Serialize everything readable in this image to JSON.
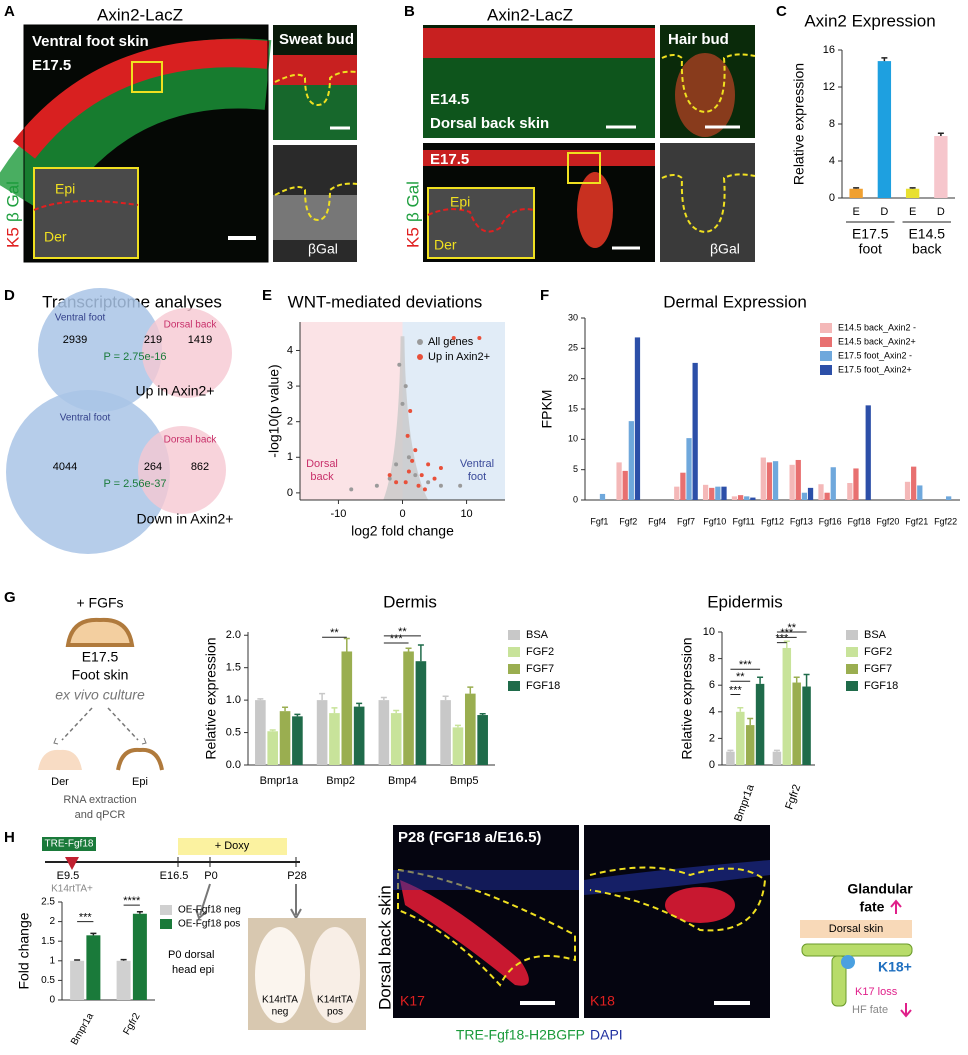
{
  "panel_labels": [
    "A",
    "B",
    "C",
    "D",
    "E",
    "F",
    "G",
    "H"
  ],
  "A": {
    "title": "Axin2-LacZ",
    "stain_k5": "K5",
    "stain_bgal": "β Gal",
    "region": "Ventral foot skin",
    "stage": "E17.5",
    "inset_epi": "Epi",
    "inset_der": "Der",
    "side_top": "Sweat bud",
    "side_bottom": "βGal"
  },
  "B": {
    "title": "Axin2-LacZ",
    "stain_k5": "K5",
    "stain_bgal": "β Gal",
    "stage_top": "E14.5",
    "region": "Dorsal back skin",
    "stage_bottom": "E17.5",
    "inset_epi": "Epi",
    "inset_der": "Der",
    "side_top": "Hair bud",
    "side_bottom": "βGal"
  },
  "D": {
    "title": "Transcriptome analyses",
    "up": {
      "set1": "Ventral foot",
      "set2": "Dorsal back",
      "only1": 2939,
      "both": 219,
      "only2": 1419,
      "p": "P = 2.75e-16",
      "label": "Up in Axin2+"
    },
    "down": {
      "set1": "Ventral foot",
      "set2": "Dorsal back",
      "only1": 4044,
      "both": 264,
      "only2": 862,
      "p": "P = 2.56e-37",
      "label": "Down in Axin2+"
    }
  },
  "G": {
    "schematic": {
      "treatment": "+ FGFs",
      "stage": "E17.5",
      "tissue": "Foot skin",
      "method": "ex vivo culture",
      "der": "Der",
      "epi": "Epi",
      "assay": [
        "RNA extraction",
        "and qPCR"
      ]
    }
  },
  "H": {
    "timeline": {
      "construct": "TRE-Fgf18",
      "points": [
        "E9.5",
        "E16.5",
        "P0",
        "P28"
      ],
      "doxy": "+ Doxy",
      "driver": "K14rtTA+"
    },
    "sample": [
      "P0 dorsal",
      "head epi"
    ],
    "mice": [
      [
        "K14rtTA",
        "neg"
      ],
      [
        "K14rtTA",
        "pos"
      ]
    ],
    "image_title": "P28 (FGF18 a/E16.5)",
    "image_side": "Dorsal back skin",
    "stains": [
      "K17",
      "K18"
    ],
    "caption_green": "TRE-Fgf18-H2BGFP",
    "caption_blue": "DAPI",
    "model": {
      "top": [
        "Glandular",
        "fate"
      ],
      "tissue": "Dorsal skin",
      "marker": "K18+",
      "loss": "K17 loss",
      "hf": "HF fate"
    }
  },
  "chart_data": [
    {
      "type": "bar",
      "title": "Axin2 Expression",
      "y_label": "Relative expression",
      "categories": [
        "E",
        "D",
        "E",
        "D"
      ],
      "group_labels": [
        [
          "E17.5",
          "foot"
        ],
        [
          "E14.5",
          "back"
        ]
      ],
      "values": [
        1,
        14.8,
        1,
        6.7
      ],
      "errors": [
        0.1,
        0.35,
        0.1,
        0.3
      ],
      "colors": [
        "#f0a030",
        "#1ea0e0",
        "#e8e030",
        "#f6c6cc"
      ],
      "ylim": [
        0,
        16
      ],
      "yticks": [
        0,
        4,
        8,
        12,
        16
      ]
    },
    {
      "type": "scatter",
      "title": "WNT-mediated deviations",
      "x_label": "log2 fold change",
      "y_label": "-log10(p value)",
      "region_labels": [
        [
          "Dorsal",
          "back"
        ],
        [
          "Ventral",
          "foot"
        ]
      ],
      "xlim": [
        -16,
        16
      ],
      "xticks": [
        -10,
        0,
        10
      ],
      "ylim": [
        -0.2,
        4.8
      ],
      "yticks": [
        0,
        1,
        2,
        3,
        4
      ],
      "series": [
        {
          "name": "All genes",
          "color": "#9a9a9a",
          "x": [
            -4,
            -2,
            -1,
            0,
            1,
            2,
            4,
            6,
            -0.5,
            0.5,
            -8,
            9
          ],
          "values": [
            0.2,
            0.4,
            0.8,
            2.5,
            1,
            0.5,
            0.3,
            0.2,
            3.6,
            3,
            0.1,
            0.2
          ]
        },
        {
          "name": "Up in Axin2+",
          "color": "#e8503a",
          "x": [
            0.5,
            1,
            1.5,
            2,
            3,
            4,
            5,
            6,
            0.8,
            2.5,
            -1,
            -2,
            1.2,
            3.5,
            8,
            12
          ],
          "values": [
            0.3,
            0.6,
            0.9,
            1.2,
            0.5,
            0.8,
            0.4,
            0.7,
            1.6,
            0.2,
            0.3,
            0.5,
            2.3,
            0.1,
            4.35,
            4.35
          ]
        }
      ]
    },
    {
      "type": "bar",
      "title": "Dermal Expression",
      "y_label": "FPKM",
      "categories": [
        "Fgf1",
        "Fgf2",
        "Fgf4",
        "Fgf7",
        "Fgf10",
        "Fgf11",
        "Fgf12",
        "Fgf13",
        "Fgf16",
        "Fgf18",
        "Fgf20",
        "Fgf21",
        "Fgf22"
      ],
      "series": [
        {
          "name": "E14.5 back_Axin2 -",
          "color": "#f4b8b8",
          "values": [
            0,
            6.2,
            0,
            2.2,
            2.5,
            0.6,
            7,
            5.8,
            2.6,
            2.8,
            0,
            3,
            0
          ]
        },
        {
          "name": "E14.5 back_Axin2+",
          "color": "#e87070",
          "values": [
            0,
            4.8,
            0,
            4.5,
            2,
            0.8,
            6.2,
            6.6,
            1.2,
            5.2,
            0,
            5.5,
            0
          ]
        },
        {
          "name": "E17.5 foot_Axin2 -",
          "color": "#6fa8dc",
          "values": [
            1,
            13,
            0,
            10.2,
            2.2,
            0.6,
            6.4,
            1.2,
            5.4,
            0,
            0,
            2.4,
            0.6
          ]
        },
        {
          "name": "E17.5 foot_Axin2+",
          "color": "#2c4fa8",
          "values": [
            0,
            26.8,
            0,
            22.6,
            2.2,
            0.4,
            0,
            2,
            0,
            15.6,
            0,
            0,
            0
          ]
        }
      ],
      "ylim": [
        0,
        30
      ],
      "yticks": [
        0,
        5,
        10,
        15,
        20,
        25,
        30
      ]
    },
    {
      "type": "bar",
      "title": "Dermis",
      "y_label": "Relative expression",
      "categories": [
        "Bmpr1a",
        "Bmp2",
        "Bmp4",
        "Bmp5"
      ],
      "series": [
        {
          "name": "BSA",
          "color": "#c8c8c8",
          "values": [
            1,
            1,
            1,
            1
          ],
          "errors": [
            0.02,
            0.1,
            0.04,
            0.06
          ]
        },
        {
          "name": "FGF2",
          "color": "#c8e39a",
          "values": [
            0.52,
            0.8,
            0.8,
            0.58
          ],
          "errors": [
            0.02,
            0.08,
            0.04,
            0.03
          ]
        },
        {
          "name": "FGF7",
          "color": "#9aae50",
          "values": [
            0.83,
            1.75,
            1.75,
            1.1
          ],
          "errors": [
            0.06,
            0.2,
            0.05,
            0.1
          ]
        },
        {
          "name": "FGF18",
          "color": "#1f6b4a",
          "values": [
            0.75,
            0.9,
            1.6,
            0.77
          ],
          "errors": [
            0.03,
            0.05,
            0.25,
            0.02
          ]
        }
      ],
      "ylim": [
        0,
        2.05
      ],
      "yticks": [
        {
          "value": 0,
          "label": "0.0"
        },
        0.5,
        {
          "value": 1,
          "label": "1.0"
        },
        1.5,
        {
          "value": 2,
          "label": "2.0"
        }
      ],
      "annotations": [
        "**",
        "***",
        "**"
      ]
    },
    {
      "type": "bar",
      "title": "Epidermis",
      "y_label": "Relative expression",
      "categories": [
        "Bmpr1a",
        "Fgfr2"
      ],
      "series": [
        {
          "name": "BSA",
          "color": "#c8c8c8",
          "values": [
            1,
            1
          ],
          "errors": [
            0.1,
            0.1
          ]
        },
        {
          "name": "FGF2",
          "color": "#c8e39a",
          "values": [
            4,
            8.8
          ],
          "errors": [
            0.3,
            0.5
          ]
        },
        {
          "name": "FGF7",
          "color": "#9aae50",
          "values": [
            3,
            6.2
          ],
          "errors": [
            0.5,
            0.4
          ]
        },
        {
          "name": "FGF18",
          "color": "#1f6b4a",
          "values": [
            6.1,
            5.9
          ],
          "errors": [
            0.5,
            0.9
          ]
        }
      ],
      "ylim": [
        0,
        10
      ],
      "yticks": [
        0,
        2,
        4,
        6,
        8,
        10
      ],
      "annotations": [
        "***",
        "**",
        "***",
        "***",
        "***",
        "**"
      ]
    },
    {
      "type": "bar",
      "y_label": "Fold change",
      "categories": [
        "Bmpr1a",
        "Fgfr2"
      ],
      "series": [
        {
          "name": "OE-Fgf18 neg",
          "color": "#d0d0d0",
          "values": [
            1,
            1
          ],
          "errors": [
            0.02,
            0.03
          ]
        },
        {
          "name": "OE-Fgf18 pos",
          "color": "#1a7a3a",
          "values": [
            1.65,
            2.2
          ],
          "errors": [
            0.05,
            0.05
          ]
        }
      ],
      "ylim": [
        0,
        2.5
      ],
      "yticks": [
        0,
        0.5,
        1,
        1.5,
        2,
        2.5
      ],
      "annotations": [
        "***",
        "****"
      ]
    }
  ]
}
